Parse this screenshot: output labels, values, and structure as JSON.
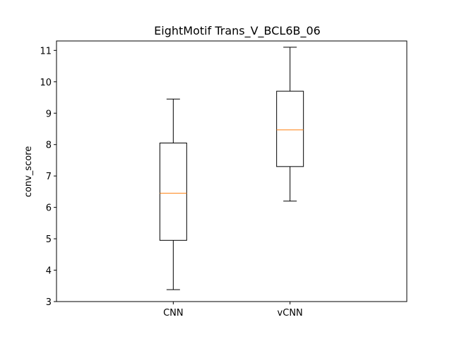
{
  "chart_data": {
    "type": "box",
    "title": "EightMotif Trans_V_BCL6B_06",
    "xlabel": "",
    "ylabel": "conv_score",
    "ylim": [
      3,
      11.3
    ],
    "yticks": [
      3,
      4,
      5,
      6,
      7,
      8,
      9,
      10,
      11
    ],
    "categories": [
      "CNN",
      "vCNN"
    ],
    "boxes": [
      {
        "category": "CNN",
        "whisker_low": 3.38,
        "q1": 4.95,
        "median": 6.45,
        "q3": 8.05,
        "whisker_high": 9.45
      },
      {
        "category": "vCNN",
        "whisker_low": 6.2,
        "q1": 7.3,
        "median": 8.47,
        "q3": 9.7,
        "whisker_high": 11.1
      }
    ],
    "grid": false,
    "legend": "none",
    "colors": {
      "box": "#000000",
      "median": "#ff7f0e"
    }
  }
}
